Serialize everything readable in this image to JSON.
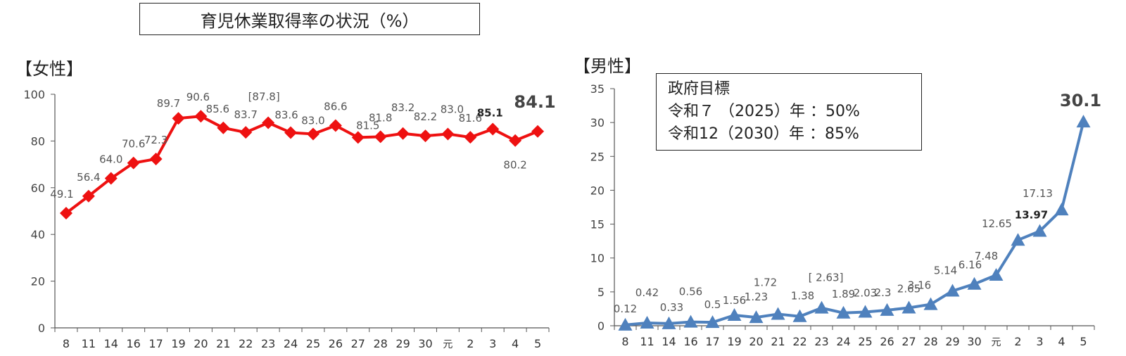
{
  "page_title": "育児休業取得率の状況（%）",
  "chart_data": [
    {
      "type": "line",
      "panel_label": "【女性】",
      "color": "#ee1111",
      "marker": "diamond",
      "categories": [
        "8",
        "11",
        "14",
        "16",
        "17",
        "19",
        "20",
        "21",
        "22",
        "23",
        "24",
        "25",
        "26",
        "27",
        "28",
        "29",
        "30",
        "元",
        "2",
        "3",
        "4",
        "5"
      ],
      "values": [
        49.1,
        56.4,
        64.0,
        70.6,
        72.3,
        89.7,
        90.6,
        85.6,
        83.7,
        87.8,
        83.6,
        83.0,
        86.6,
        81.5,
        81.8,
        83.2,
        82.2,
        83.0,
        81.6,
        85.1,
        80.2,
        84.1
      ],
      "data_labels": [
        "49.1",
        "56.4",
        "64.0",
        "70.6",
        "72.3",
        "89.7",
        "90.6",
        "85.6",
        "83.7",
        "[87.8]",
        "83.6",
        "83.0",
        "86.6",
        "81.5",
        "81.8",
        "83.2",
        "82.2",
        "83.0",
        "81.6",
        "85.1",
        "80.2",
        "84.1"
      ],
      "ylim": [
        0,
        100
      ],
      "yticks": [
        "0",
        "20",
        "40",
        "60",
        "80",
        "100"
      ],
      "grid": false,
      "xlabel": "",
      "ylabel": ""
    },
    {
      "type": "line",
      "panel_label": "【男性】",
      "color": "#4f81bd",
      "marker": "triangle",
      "categories": [
        "8",
        "11",
        "14",
        "16",
        "17",
        "19",
        "20",
        "21",
        "22",
        "23",
        "24",
        "25",
        "26",
        "27",
        "28",
        "29",
        "30",
        "元",
        "2",
        "3",
        "4",
        "5"
      ],
      "values": [
        0.12,
        0.42,
        0.33,
        0.56,
        0.5,
        1.56,
        1.23,
        1.72,
        1.38,
        2.63,
        1.89,
        2.03,
        2.3,
        2.65,
        3.16,
        5.14,
        6.16,
        7.48,
        12.65,
        13.97,
        17.13,
        30.1
      ],
      "data_labels": [
        "0.12",
        "0.42",
        "0.33",
        "0.56",
        "0.5",
        "1.56",
        "1.23",
        "1.72",
        "1.38",
        "[ 2.63]",
        "1.89",
        "2.03",
        "2.3",
        "2.65",
        "3.16",
        "5.14",
        "6.16",
        "7.48",
        "12.65",
        "13.97",
        "17.13",
        "30.1"
      ],
      "ylim": [
        0,
        35
      ],
      "yticks": [
        "0",
        "5",
        "10",
        "15",
        "20",
        "25",
        "30",
        "35"
      ],
      "grid": false,
      "xlabel": "",
      "ylabel": "",
      "annotation": {
        "lines": [
          "政府目標",
          "令和７ （2025）年 ：50%",
          "令和12（2030）年 ：85%"
        ]
      }
    }
  ]
}
